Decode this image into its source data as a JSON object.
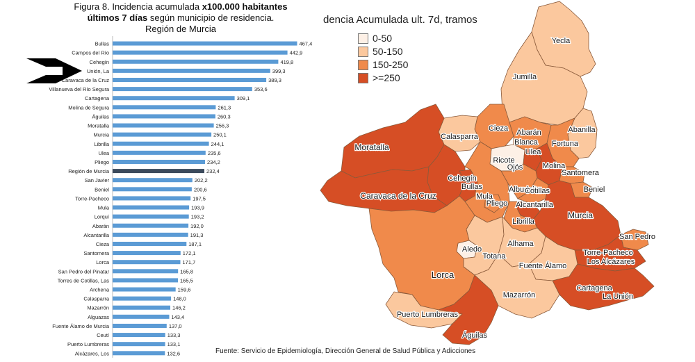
{
  "title": {
    "line1_plain": "Figura 8. Incidencia acumulada ",
    "line1_bold": "x100.000 habitantes",
    "line2_bold": "últimos 7 días",
    "line2_plain": " según municipio de residencia.",
    "line3": "Región de Murcia"
  },
  "chart_data": {
    "type": "bar",
    "orientation": "horizontal",
    "categories": [
      "Bullas",
      "Campos del Río",
      "Cehegín",
      "Unión, La",
      "Caravaca de la Cruz",
      "Villanueva del Río Segura",
      "Cartagena",
      "Molina de Segura",
      "Águilas",
      "Moratalla",
      "Murcia",
      "Librilla",
      "Ulea",
      "Pliego",
      "Región de Murcia",
      "San Javier",
      "Beniel",
      "Torre-Pacheco",
      "Mula",
      "Lorquí",
      "Abarán",
      "Alcantarilla",
      "Cieza",
      "Santomera",
      "Lorca",
      "San Pedro del Pinatar",
      "Torres de Cotillas, Las",
      "Archena",
      "Calasparra",
      "Mazarrón",
      "Alguazas",
      "Fuente Álamo de Murcia",
      "Ceutí",
      "Puerto Lumbreras",
      "Alcázares, Los"
    ],
    "values": [
      467.4,
      442.9,
      419.8,
      399.3,
      389.3,
      353.6,
      309.1,
      261.3,
      260.3,
      256.3,
      250.1,
      244.1,
      235.6,
      234.2,
      232.4,
      202.2,
      200.6,
      197.5,
      193.9,
      193.2,
      192.0,
      191.3,
      187.1,
      172.1,
      171.7,
      165.8,
      165.5,
      159.6,
      148.0,
      146.2,
      143.4,
      137.0,
      133.3,
      133.1,
      132.6
    ],
    "value_labels": [
      "467,4",
      "442,9",
      "419,8",
      "399,3",
      "389,3",
      "353,6",
      "309,1",
      "261,3",
      "260,3",
      "256,3",
      "250,1",
      "244,1",
      "235,6",
      "234,2",
      "232,4",
      "202,2",
      "200,6",
      "197,5",
      "193,9",
      "193,2",
      "192,0",
      "191,3",
      "187,1",
      "172,1",
      "171,7",
      "165,8",
      "165,5",
      "159,6",
      "148,0",
      "146,2",
      "143,4",
      "137,0",
      "133,3",
      "133,1",
      "132,6"
    ],
    "highlight_category": "Región de Murcia",
    "bar_color": "#5b9bd5",
    "highlight_color": "#3b4a5c",
    "xlim": [
      0,
      500
    ],
    "grid": false,
    "legend": "none"
  },
  "map": {
    "legend_title": "dencia Acumulada ult. 7d, tramos",
    "legend_items": [
      {
        "label": "0-50",
        "color": "#fdf0e6"
      },
      {
        "label": "50-150",
        "color": "#fbc89e"
      },
      {
        "label": "150-250",
        "color": "#f08a4b"
      },
      {
        "label": ">=250",
        "color": "#d64e25"
      }
    ],
    "municipality_labels": [
      "Yecla",
      "Jumilla",
      "Abanilla",
      "Fortuna",
      "Cieza",
      "Abarán",
      "Blanca",
      "Calasparra",
      "Moratalla",
      "Ricote",
      "Ulea",
      "Ojós",
      "Molina",
      "Santomera",
      "Beniel",
      "Cehegín",
      "Bullas",
      "Caravaca de la Cruz",
      "Mula",
      "Pliego",
      "Albudeite",
      "Cotillas",
      "Alcantarilla",
      "Murcia",
      "Librilla",
      "San Pedro",
      "Torre-Pacheco",
      "Los Alcázares",
      "Aledo",
      "Totana",
      "Alhama",
      "Fuente Álamo",
      "Lorca",
      "Cartagena",
      "La Unión",
      "Mazarrón",
      "Puerto Lumbreras",
      "Águilas"
    ]
  },
  "source": "Fuente: Servicio de Epidemiología, Dirección General de Salud Pública y Adicciones"
}
